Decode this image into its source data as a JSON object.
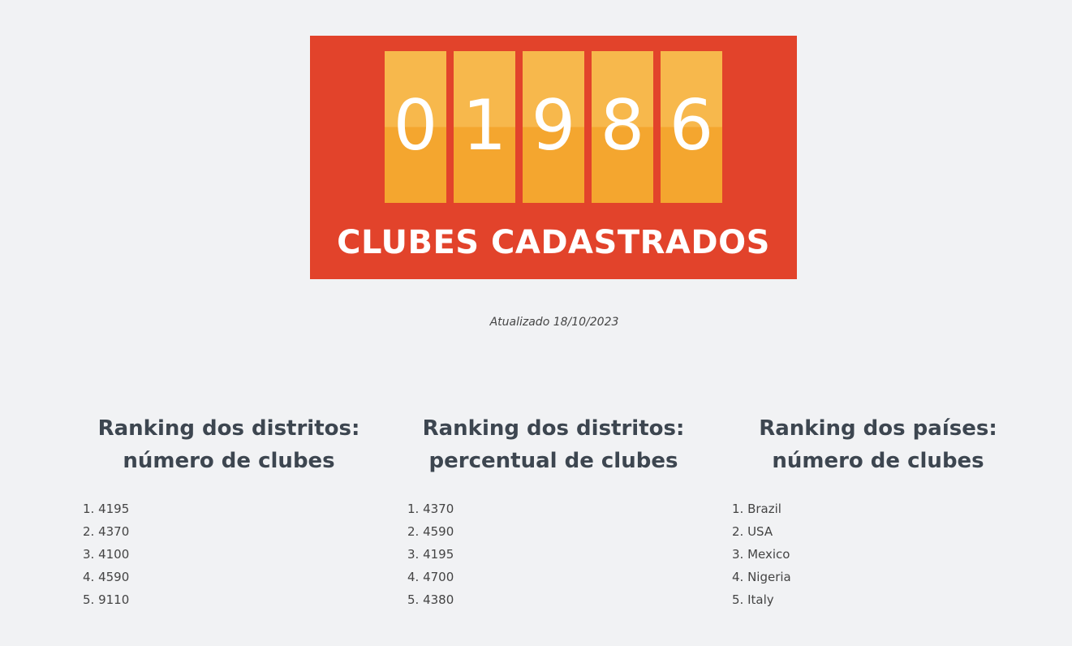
{
  "banner": {
    "digits": [
      "0",
      "1",
      "9",
      "8",
      "6"
    ],
    "label": "CLUBES CADASTRADOS",
    "colors": {
      "background": "#e2432b",
      "tile_top": "#f7b84c",
      "tile_bottom": "#f4a62f"
    }
  },
  "updated": "Atualizado 18/10/2023",
  "rankings": [
    {
      "title_line1": "Ranking dos distritos:",
      "title_line2": "número de clubes",
      "items": [
        "1. 4195",
        "2. 4370",
        "3. 4100",
        "4. 4590",
        "5. 9110"
      ]
    },
    {
      "title_line1": "Ranking dos distritos:",
      "title_line2": "percentual de clubes",
      "items": [
        "1. 4370",
        "2. 4590",
        "3. 4195",
        "4. 4700",
        "5. 4380"
      ]
    },
    {
      "title_line1": "Ranking dos países:",
      "title_line2": "número de clubes",
      "items": [
        "1. Brazil",
        "2. USA",
        "3. Mexico",
        "4. Nigeria",
        "5. Italy"
      ]
    }
  ]
}
